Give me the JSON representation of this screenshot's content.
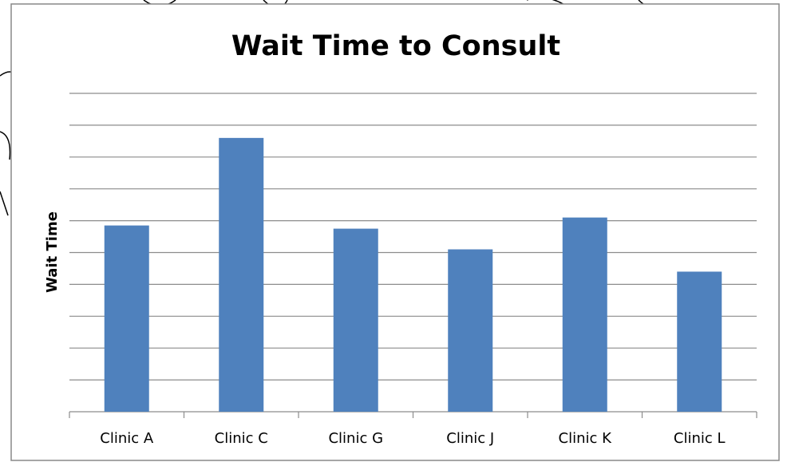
{
  "chart_data": {
    "type": "bar",
    "title": "Wait Time to Consult",
    "y_label": "Wait Time",
    "categories": [
      "Clinic A",
      "Clinic C",
      "Clinic G",
      "Clinic J",
      "Clinic K",
      "Clinic L"
    ],
    "values": [
      5.85,
      8.6,
      5.75,
      5.1,
      6.1,
      4.4
    ],
    "color": "#4f81bd",
    "ylim": [
      0,
      10
    ],
    "yticks": [
      0,
      1,
      2,
      3,
      4,
      5,
      6,
      7,
      8,
      9,
      10
    ],
    "grid": true
  }
}
